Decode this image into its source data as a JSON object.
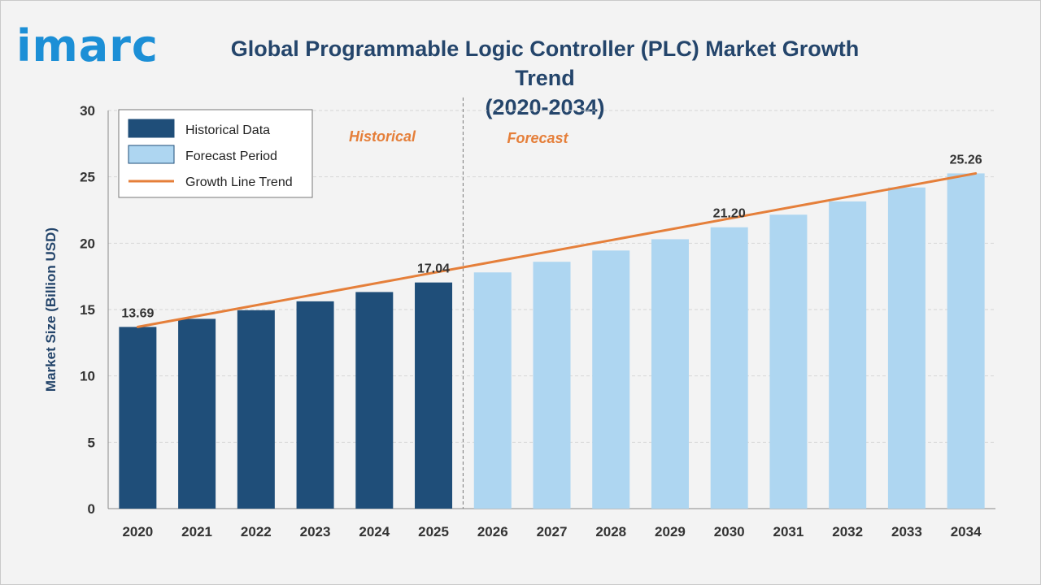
{
  "brand": {
    "logo_text": "imarc"
  },
  "chart_data": {
    "type": "bar",
    "title": "Global Programmable Logic Controller (PLC) Market Growth Trend",
    "subtitle": "(2020-2034)",
    "ylabel": "Market Size (Billion USD)",
    "xlabel": "",
    "ylim": [
      0,
      30
    ],
    "yticks": [
      0,
      5,
      10,
      15,
      20,
      25,
      30
    ],
    "grid": true,
    "categories": [
      "2020",
      "2021",
      "2022",
      "2023",
      "2024",
      "2025",
      "2026",
      "2027",
      "2028",
      "2029",
      "2030",
      "2031",
      "2032",
      "2033",
      "2034"
    ],
    "series": [
      {
        "name": "Historical Data",
        "color": "#1f4e79",
        "x": [
          "2020",
          "2021",
          "2022",
          "2023",
          "2024",
          "2025"
        ],
        "values": [
          13.69,
          14.3,
          14.95,
          15.62,
          16.32,
          17.04
        ]
      },
      {
        "name": "Forecast Period",
        "color": "#aed6f1",
        "x": [
          "2026",
          "2027",
          "2028",
          "2029",
          "2030",
          "2031",
          "2032",
          "2033",
          "2034"
        ],
        "values": [
          17.8,
          18.6,
          19.45,
          20.3,
          21.2,
          22.15,
          23.15,
          24.2,
          25.26
        ]
      }
    ],
    "trend_line": {
      "name": "Growth Line Trend",
      "color": "#e57f3a",
      "from": [
        "2020",
        13.69
      ],
      "to": [
        "2034",
        25.26
      ]
    },
    "data_labels": [
      {
        "x": "2020",
        "value": "13.69"
      },
      {
        "x": "2025",
        "value": "17.04"
      },
      {
        "x": "2030",
        "value": "21.20"
      },
      {
        "x": "2034",
        "value": "25.26"
      }
    ],
    "region_labels": {
      "historical": "Historical",
      "forecast": "Forecast"
    },
    "divider_between": [
      "2025",
      "2026"
    ],
    "legend": {
      "position": "top-left",
      "items": [
        "Historical Data",
        "Forecast Period",
        "Growth Line Trend"
      ]
    }
  }
}
